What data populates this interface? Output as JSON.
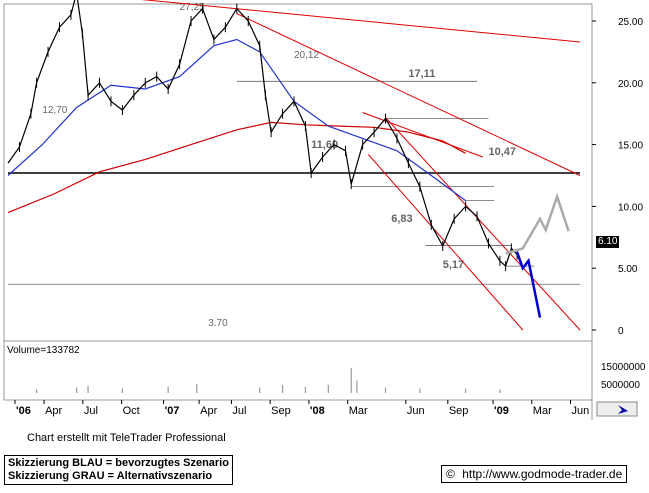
{
  "chart_data": {
    "type": "line",
    "price_axis_ticks": [
      "25.00",
      "20.00",
      "15.00",
      "10.00",
      "5.00",
      "0"
    ],
    "volume_label": "Volume=133782",
    "volume_axis_ticks": [
      "15000000",
      "5000000"
    ],
    "x_ticks": [
      "'06",
      "Apr",
      "Jul",
      "Oct",
      "'07",
      "Apr",
      "Jul",
      "Sep",
      "'08",
      "Mar",
      "Jun",
      "Sep",
      "'09",
      "Mar",
      "Jun"
    ],
    "levels": [
      {
        "label": "27,25",
        "value": 27.25
      },
      {
        "label": "20,12",
        "value": 20.12
      },
      {
        "label": "17,11",
        "value": 17.11
      },
      {
        "label": "12,70",
        "value": 12.7
      },
      {
        "label": "11,60",
        "value": 11.6
      },
      {
        "label": "10,47",
        "value": 10.47
      },
      {
        "label": "6,83",
        "value": 6.83
      },
      {
        "label": "5,17",
        "value": 5.17
      },
      {
        "label": "3.70",
        "value": 3.7
      }
    ],
    "last_price": "6.10",
    "price_series": [
      {
        "t": 0,
        "v": 13.5
      },
      {
        "t": 2,
        "v": 14.8
      },
      {
        "t": 4,
        "v": 17.5
      },
      {
        "t": 5,
        "v": 20
      },
      {
        "t": 7,
        "v": 22.5
      },
      {
        "t": 9,
        "v": 24.5
      },
      {
        "t": 11,
        "v": 25.5
      },
      {
        "t": 12,
        "v": 27.25
      },
      {
        "t": 13,
        "v": 24
      },
      {
        "t": 14,
        "v": 19
      },
      {
        "t": 16,
        "v": 20
      },
      {
        "t": 18,
        "v": 18.5
      },
      {
        "t": 20,
        "v": 17.8
      },
      {
        "t": 22,
        "v": 19
      },
      {
        "t": 24,
        "v": 20
      },
      {
        "t": 26,
        "v": 20.5
      },
      {
        "t": 28,
        "v": 19.5
      },
      {
        "t": 30,
        "v": 21.5
      },
      {
        "t": 32,
        "v": 25
      },
      {
        "t": 34,
        "v": 26
      },
      {
        "t": 36,
        "v": 23.5
      },
      {
        "t": 38,
        "v": 24.5
      },
      {
        "t": 40,
        "v": 26
      },
      {
        "t": 42,
        "v": 25
      },
      {
        "t": 44,
        "v": 23
      },
      {
        "t": 45,
        "v": 19
      },
      {
        "t": 46,
        "v": 16
      },
      {
        "t": 48,
        "v": 17.5
      },
      {
        "t": 50,
        "v": 18.5
      },
      {
        "t": 52,
        "v": 16.5
      },
      {
        "t": 53,
        "v": 12.7
      },
      {
        "t": 55,
        "v": 14
      },
      {
        "t": 57,
        "v": 15
      },
      {
        "t": 59,
        "v": 14.5
      },
      {
        "t": 60,
        "v": 11.8
      },
      {
        "t": 62,
        "v": 15
      },
      {
        "t": 64,
        "v": 16
      },
      {
        "t": 66,
        "v": 17.11
      },
      {
        "t": 68,
        "v": 15.5
      },
      {
        "t": 70,
        "v": 13.5
      },
      {
        "t": 72,
        "v": 11.6
      },
      {
        "t": 74,
        "v": 8.5
      },
      {
        "t": 76,
        "v": 6.8
      },
      {
        "t": 78,
        "v": 9
      },
      {
        "t": 80,
        "v": 10
      },
      {
        "t": 82,
        "v": 9.2
      },
      {
        "t": 84,
        "v": 7
      },
      {
        "t": 86,
        "v": 5.6
      },
      {
        "t": 87,
        "v": 5.17
      },
      {
        "t": 88,
        "v": 6.6
      },
      {
        "t": 89,
        "v": 6.1
      }
    ],
    "ma_fast": [
      {
        "t": 0,
        "v": 12.5
      },
      {
        "t": 6,
        "v": 15
      },
      {
        "t": 12,
        "v": 18
      },
      {
        "t": 18,
        "v": 19.8
      },
      {
        "t": 24,
        "v": 19.5
      },
      {
        "t": 30,
        "v": 20.5
      },
      {
        "t": 36,
        "v": 23
      },
      {
        "t": 40,
        "v": 23.5
      },
      {
        "t": 44,
        "v": 22.5
      },
      {
        "t": 50,
        "v": 18.5
      },
      {
        "t": 56,
        "v": 16.5
      },
      {
        "t": 62,
        "v": 15.5
      },
      {
        "t": 68,
        "v": 14.5
      },
      {
        "t": 74,
        "v": 12.5
      },
      {
        "t": 80,
        "v": 10.47
      }
    ],
    "ma_slow": [
      {
        "t": 0,
        "v": 9.5
      },
      {
        "t": 8,
        "v": 11
      },
      {
        "t": 16,
        "v": 12.8
      },
      {
        "t": 24,
        "v": 13.8
      },
      {
        "t": 32,
        "v": 15
      },
      {
        "t": 40,
        "v": 16.2
      },
      {
        "t": 46,
        "v": 16.8
      },
      {
        "t": 52,
        "v": 16.6
      },
      {
        "t": 58,
        "v": 16.5
      },
      {
        "t": 64,
        "v": 16.4
      },
      {
        "t": 70,
        "v": 16
      },
      {
        "t": 76,
        "v": 15.3
      },
      {
        "t": 80,
        "v": 14.3
      }
    ],
    "scenario_blue": [
      {
        "t": 89,
        "v": 6.3
      },
      {
        "t": 90,
        "v": 5.0
      },
      {
        "t": 91,
        "v": 5.6
      },
      {
        "t": 93,
        "v": 1.0
      }
    ],
    "scenario_gray": [
      {
        "t": 87,
        "v": 6.2
      },
      {
        "t": 90,
        "v": 6.6
      },
      {
        "t": 93,
        "v": 9.0
      },
      {
        "t": 94,
        "v": 8.1
      },
      {
        "t": 96,
        "v": 10.8
      },
      {
        "t": 98,
        "v": 8.0
      }
    ],
    "volume": [
      {
        "t": 5,
        "v": 2
      },
      {
        "t": 12,
        "v": 3
      },
      {
        "t": 14,
        "v": 4
      },
      {
        "t": 20,
        "v": 2.5
      },
      {
        "t": 28,
        "v": 3.5
      },
      {
        "t": 33,
        "v": 5
      },
      {
        "t": 44,
        "v": 3
      },
      {
        "t": 48,
        "v": 4.5
      },
      {
        "t": 52,
        "v": 3.5
      },
      {
        "t": 56,
        "v": 4.5
      },
      {
        "t": 60,
        "v": 14
      },
      {
        "t": 61,
        "v": 7
      },
      {
        "t": 66,
        "v": 3
      },
      {
        "t": 72,
        "v": 2.5
      },
      {
        "t": 80,
        "v": 2.5
      },
      {
        "t": 86,
        "v": 2
      }
    ],
    "grid": false
  },
  "footer": {
    "credit": "Chart erstellt mit TeleTrader Professional",
    "legend_blue": "Skizzierung BLAU = bevorzugtes Szenario",
    "legend_gray": "Skizzierung GRAU = Alternativszenario",
    "copyright_symbol": "©",
    "url": "http://www.godmode-trader.de"
  },
  "colors": {
    "price": "#000000",
    "ma_fast": "#2233cc",
    "ma_slow": "#cc0000",
    "trend": "#dd0000",
    "scenario_blue": "#0000cc",
    "scenario_gray": "#aaaaaa",
    "volume": "#999999"
  }
}
